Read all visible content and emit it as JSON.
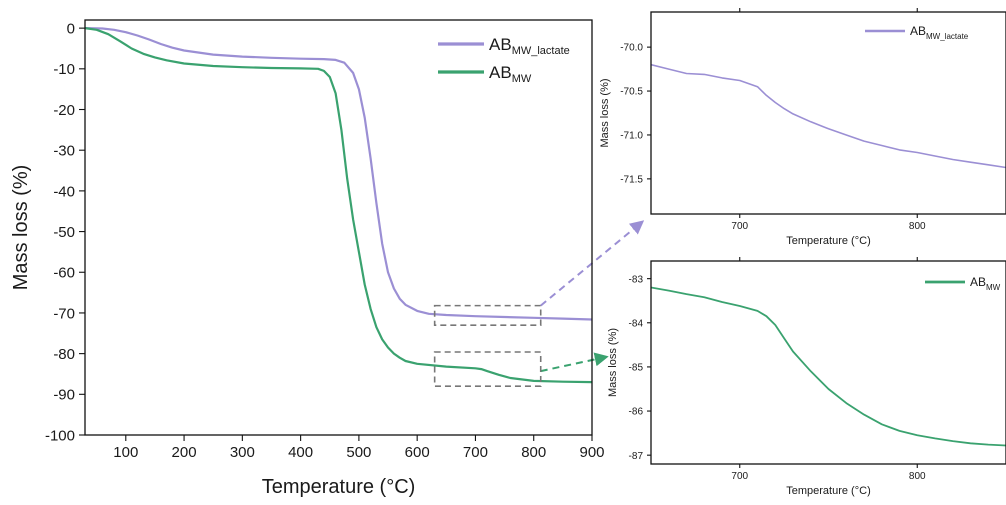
{
  "colors": {
    "ab_mw_lactate": "#9b8fd4",
    "ab_mw": "#3aa26f",
    "zoom_box": "#777777"
  },
  "chart_data": [
    {
      "type": "line",
      "xlabel": "Temperature (°C)",
      "ylabel": "Mass loss (%)",
      "xlim": [
        30,
        900
      ],
      "ylim": [
        -100,
        2
      ],
      "xticks": [
        100,
        200,
        300,
        400,
        500,
        600,
        700,
        800,
        900
      ],
      "yticks": [
        0,
        -10,
        -20,
        -30,
        -40,
        -50,
        -60,
        -70,
        -80,
        -90,
        -100
      ],
      "legend_position": "top-right",
      "series": [
        {
          "name": "AB_MW_lactate",
          "name_main": "AB",
          "name_sub": "MW_lactate",
          "x": [
            30,
            60,
            80,
            100,
            120,
            140,
            160,
            180,
            200,
            250,
            300,
            350,
            400,
            440,
            460,
            475,
            490,
            500,
            510,
            520,
            530,
            540,
            550,
            560,
            570,
            580,
            600,
            620,
            650,
            700,
            750,
            800,
            850,
            900
          ],
          "y": [
            0,
            -0.1,
            -0.4,
            -1.0,
            -1.8,
            -2.8,
            -3.9,
            -4.8,
            -5.5,
            -6.5,
            -7.0,
            -7.3,
            -7.5,
            -7.6,
            -7.8,
            -8.5,
            -11,
            -15,
            -22,
            -32,
            -43,
            -53,
            -60,
            -64,
            -66.5,
            -68,
            -69.5,
            -70.2,
            -70.5,
            -70.8,
            -71.0,
            -71.2,
            -71.4,
            -71.6
          ]
        },
        {
          "name": "AB_MW",
          "name_main": "AB",
          "name_sub": "MW",
          "x": [
            30,
            50,
            70,
            90,
            110,
            130,
            150,
            170,
            200,
            250,
            300,
            350,
            400,
            430,
            440,
            450,
            460,
            470,
            480,
            490,
            500,
            510,
            520,
            530,
            540,
            550,
            560,
            570,
            580,
            600,
            650,
            700,
            710,
            720,
            740,
            760,
            800,
            850,
            900
          ],
          "y": [
            0,
            -0.4,
            -1.5,
            -3.2,
            -5.0,
            -6.3,
            -7.2,
            -7.9,
            -8.7,
            -9.3,
            -9.6,
            -9.8,
            -9.9,
            -10.0,
            -10.5,
            -12,
            -16,
            -25,
            -37,
            -47,
            -55,
            -63,
            -69,
            -73.5,
            -76.5,
            -78.5,
            -80,
            -81,
            -81.8,
            -82.5,
            -83.2,
            -83.6,
            -83.8,
            -84.3,
            -85.2,
            -86.0,
            -86.7,
            -86.9,
            -87.0
          ]
        }
      ]
    },
    {
      "type": "line",
      "xlabel": "Temperature (°C)",
      "ylabel": "Mass loss (%)",
      "xlim": [
        650,
        850
      ],
      "ylim": [
        -71.9,
        -69.6
      ],
      "xticks": [
        700,
        800
      ],
      "yticks": [
        -70.0,
        -70.5,
        -71.0,
        -71.5
      ],
      "ytick_labels": [
        "-70.0",
        "-70.5",
        "-71.0",
        "-71.5"
      ],
      "legend_position": "top-right",
      "series": [
        {
          "name": "AB_MW_lactate",
          "name_main": "AB",
          "name_sub": "MW_lactate",
          "x": [
            650,
            660,
            670,
            680,
            690,
            700,
            710,
            715,
            720,
            725,
            730,
            740,
            750,
            760,
            770,
            780,
            790,
            800,
            810,
            820,
            830,
            840,
            850
          ],
          "y": [
            -70.2,
            -70.25,
            -70.3,
            -70.31,
            -70.35,
            -70.38,
            -70.45,
            -70.55,
            -70.63,
            -70.7,
            -70.76,
            -70.85,
            -70.93,
            -71.0,
            -71.07,
            -71.12,
            -71.17,
            -71.2,
            -71.24,
            -71.28,
            -71.31,
            -71.34,
            -71.37
          ]
        }
      ]
    },
    {
      "type": "line",
      "xlabel": "Temperature (°C)",
      "ylabel": "Mass loss (%)",
      "xlim": [
        650,
        850
      ],
      "ylim": [
        -87.2,
        -82.6
      ],
      "xticks": [
        700,
        800
      ],
      "yticks": [
        -83,
        -84,
        -85,
        -86,
        -87
      ],
      "ytick_labels": [
        "-83",
        "-84",
        "-85",
        "-86",
        "-87"
      ],
      "legend_position": "top-right",
      "series": [
        {
          "name": "AB_MW",
          "name_main": "AB",
          "name_sub": "MW",
          "x": [
            650,
            660,
            670,
            680,
            690,
            700,
            710,
            715,
            720,
            725,
            730,
            740,
            750,
            760,
            770,
            780,
            790,
            800,
            810,
            820,
            830,
            840,
            850
          ],
          "y": [
            -83.2,
            -83.27,
            -83.35,
            -83.42,
            -83.53,
            -83.62,
            -83.73,
            -83.85,
            -84.05,
            -84.35,
            -84.65,
            -85.1,
            -85.5,
            -85.82,
            -86.08,
            -86.3,
            -86.45,
            -86.55,
            -86.62,
            -86.68,
            -86.73,
            -86.76,
            -86.78
          ]
        }
      ]
    }
  ]
}
